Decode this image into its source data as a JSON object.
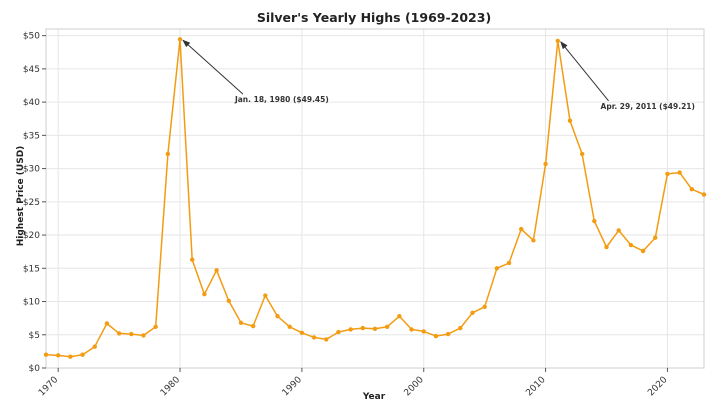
{
  "chart_data": {
    "type": "line",
    "title": "Silver's Yearly Highs (1969-2023)",
    "xlabel": "Year",
    "ylabel": "Highest Price (USD)",
    "xlim": [
      1969,
      2023
    ],
    "ylim": [
      0,
      51
    ],
    "grid": true,
    "x_ticks": [
      1970,
      1980,
      1990,
      2000,
      2010,
      2020
    ],
    "x_tick_labels": [
      "1970",
      "1980",
      "1990",
      "2000",
      "2010",
      "2020"
    ],
    "y_ticks": [
      0,
      5,
      10,
      15,
      20,
      25,
      30,
      35,
      40,
      45,
      50
    ],
    "y_tick_labels": [
      "$0",
      "$5",
      "$10",
      "$15",
      "$20",
      "$25",
      "$30",
      "$35",
      "$40",
      "$45",
      "$50"
    ],
    "color": "#f39c12",
    "x": [
      1969,
      1970,
      1971,
      1972,
      1973,
      1974,
      1975,
      1976,
      1977,
      1978,
      1979,
      1980,
      1981,
      1982,
      1983,
      1984,
      1985,
      1986,
      1987,
      1988,
      1989,
      1990,
      1991,
      1992,
      1993,
      1994,
      1995,
      1996,
      1997,
      1998,
      1999,
      2000,
      2001,
      2002,
      2003,
      2004,
      2005,
      2006,
      2007,
      2008,
      2009,
      2010,
      2011,
      2012,
      2013,
      2014,
      2015,
      2016,
      2017,
      2018,
      2019,
      2020,
      2021,
      2022,
      2023
    ],
    "values": [
      2.0,
      1.9,
      1.7,
      2.0,
      3.2,
      6.7,
      5.2,
      5.1,
      4.9,
      6.2,
      32.2,
      49.45,
      16.3,
      11.1,
      14.7,
      10.1,
      6.8,
      6.3,
      10.9,
      7.8,
      6.2,
      5.3,
      4.6,
      4.3,
      5.4,
      5.8,
      6.0,
      5.9,
      6.2,
      7.8,
      5.8,
      5.5,
      4.8,
      5.1,
      6.0,
      8.3,
      9.2,
      15.0,
      15.8,
      20.9,
      19.2,
      30.7,
      49.21,
      37.2,
      32.2,
      22.1,
      18.2,
      20.7,
      18.5,
      17.6,
      19.6,
      29.2,
      29.4,
      26.9,
      26.1
    ],
    "annotations": [
      {
        "text": "Jan. 18, 1980 ($49.45)",
        "x": 1980,
        "y": 49.45,
        "text_x": 1985,
        "text_y": 40
      },
      {
        "text": "Apr. 29, 2011 ($49.21)",
        "x": 2011,
        "y": 49.21,
        "text_x": 2015,
        "text_y": 39
      }
    ]
  }
}
